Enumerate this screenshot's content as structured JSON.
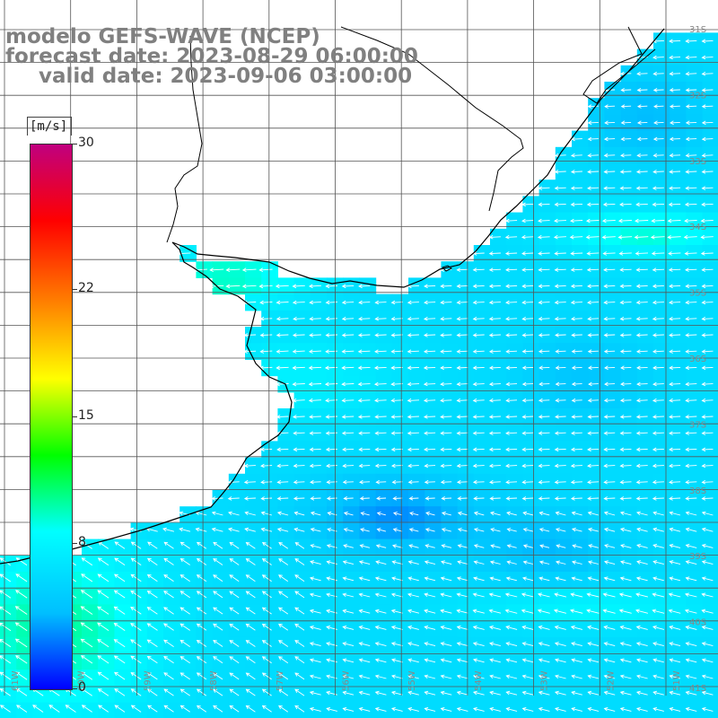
{
  "title": {
    "model": "modelo GEFS-WAVE (NCEP)",
    "forecast": "forecast date: 2023-08-29 06:00:00",
    "valid": "valid date: 2023-09-06 03:00:00"
  },
  "colorbar": {
    "unit": "[m/s]",
    "ticks": [
      {
        "label": "30",
        "value": 30
      },
      {
        "label": "22",
        "value": 22
      },
      {
        "label": "15",
        "value": 15
      },
      {
        "label": "8",
        "value": 8
      },
      {
        "label": "0",
        "value": 0
      }
    ],
    "colormap": [
      "#0000ff",
      "#00bfff",
      "#00ffff",
      "#00ff00",
      "#ffff00",
      "#ff8000",
      "#ff0000",
      "#c0007f"
    ]
  },
  "lat_labels": [
    "31S",
    "32S",
    "33S",
    "34S",
    "35S",
    "36S",
    "37S",
    "38S",
    "39S",
    "40S",
    "41S"
  ],
  "lon_labels": [
    "61W",
    "60W",
    "59W",
    "58W",
    "57W",
    "56W",
    "55W",
    "54W",
    "53W",
    "52W",
    "51W"
  ],
  "colors": {
    "grid": "#555555",
    "coast": "#000000",
    "arrow": "#ffffff",
    "land": "#ffffff"
  }
}
